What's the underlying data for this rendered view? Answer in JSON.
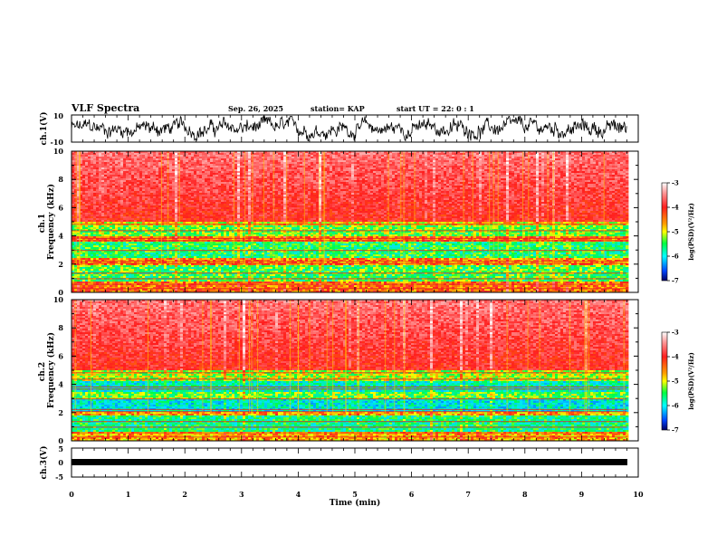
{
  "header": {
    "title": "VLF Spectra",
    "date": "Sep. 26, 2025",
    "station": "station= KAP",
    "start": "start  UT =   22: 0  : 1"
  },
  "chart_data": [
    {
      "type": "line",
      "name": "ch1-waveform",
      "ylabel": "ch.1(V)",
      "ylim": [
        -10,
        10
      ],
      "y_ticks": [
        "10",
        "-10"
      ],
      "xlim": [
        0,
        10
      ],
      "data_extent_min": [
        0,
        9.8
      ],
      "signal": "noisy waveform oscillating roughly between -8 and 8 V"
    },
    {
      "type": "heatmap",
      "name": "ch1-spectrogram",
      "ylabel": "ch.1\nFrequency  (kHz)",
      "ylim": [
        0,
        10
      ],
      "y_ticks": [
        "0",
        "2",
        "4",
        "6",
        "8",
        "10"
      ],
      "xlim": [
        0,
        10
      ],
      "bands": [
        {
          "from": 5.0,
          "to": 10.0,
          "level": -3.6
        },
        {
          "from": 4.7,
          "to": 5.0,
          "level": -4.6
        },
        {
          "from": 4.0,
          "to": 4.7,
          "level": -5.0
        },
        {
          "from": 3.6,
          "to": 4.0,
          "level": -4.2
        },
        {
          "from": 2.4,
          "to": 3.6,
          "level": -5.2
        },
        {
          "from": 1.9,
          "to": 2.4,
          "level": -4.3
        },
        {
          "from": 0.8,
          "to": 1.9,
          "level": -5.1
        },
        {
          "from": 0.0,
          "to": 0.8,
          "level": -4.2
        }
      ],
      "colorbar": {
        "label": "log(PSD)(V²/Hz)",
        "range": [
          -7,
          -3
        ],
        "ticks": [
          "-3",
          "-4",
          "-5",
          "-6",
          "-7"
        ]
      }
    },
    {
      "type": "heatmap",
      "name": "ch2-spectrogram",
      "ylabel": "ch.2\nFrequency  (kHz)",
      "ylim": [
        0,
        10
      ],
      "y_ticks": [
        "0",
        "2",
        "4",
        "6",
        "8",
        "10"
      ],
      "xlim": [
        0,
        10
      ],
      "bands": [
        {
          "from": 5.0,
          "to": 10.0,
          "level": -3.6
        },
        {
          "from": 4.2,
          "to": 5.0,
          "level": -4.8
        },
        {
          "from": 3.5,
          "to": 4.2,
          "level": -5.5
        },
        {
          "from": 3.0,
          "to": 3.5,
          "level": -5.0
        },
        {
          "from": 2.1,
          "to": 3.0,
          "level": -5.6
        },
        {
          "from": 1.8,
          "to": 2.1,
          "level": -4.4
        },
        {
          "from": 0.7,
          "to": 1.8,
          "level": -5.3
        },
        {
          "from": 0.0,
          "to": 0.7,
          "level": -4.4
        }
      ],
      "colorbar": {
        "label": "log(PSD)(V²/Hz)",
        "range": [
          -7,
          -3
        ],
        "ticks": [
          "-3",
          "-4",
          "-5",
          "-6",
          "-7"
        ]
      }
    },
    {
      "type": "line",
      "name": "ch3-waveform",
      "ylabel": "ch.3(V)",
      "ylim": [
        -5,
        5
      ],
      "y_ticks": [
        "5",
        "0",
        "-5"
      ],
      "xlim": [
        0,
        10
      ],
      "xlabel": "Time  (min)",
      "x_ticks": [
        "0",
        "1",
        "2",
        "3",
        "4",
        "5",
        "6",
        "7",
        "8",
        "9",
        "10"
      ],
      "signal": "thick flat band near 0 V",
      "data_extent_min": [
        0,
        9.8
      ]
    }
  ],
  "colors": {
    "axis": "#000000",
    "high": "#ff2020",
    "mid": "#ffff00",
    "low": "#00ff40",
    "lower": "#00e0ff",
    "lowest": "#0000cc"
  }
}
